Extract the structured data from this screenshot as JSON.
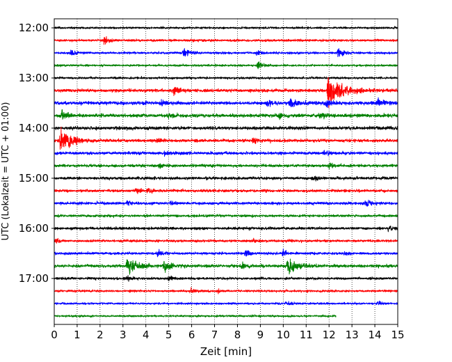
{
  "chart_data": {
    "type": "line",
    "title": "",
    "xlabel": "Zeit  [min]",
    "ylabel": "UTC (Lokalzeit = UTC + 01:00)",
    "xlim": [
      0,
      15
    ],
    "x_ticks": [
      0,
      1,
      2,
      3,
      4,
      5,
      6,
      7,
      8,
      9,
      10,
      11,
      12,
      13,
      14,
      15
    ],
    "y_ticks": [
      "12:00",
      "13:00",
      "14:00",
      "15:00",
      "16:00",
      "17:00"
    ],
    "grid": "vertical dotted at each minute",
    "trace_interval_min": 15,
    "trace_colors": [
      "#000000",
      "#ff0000",
      "#0000ff",
      "#008000"
    ],
    "traces": [
      {
        "start": "12:00",
        "color": "#000000",
        "amplitude": 0.9,
        "bursts": []
      },
      {
        "start": "12:15",
        "color": "#ff0000",
        "amplitude": 1.0,
        "bursts": [
          {
            "t": 2.15,
            "amp": 4.5
          }
        ]
      },
      {
        "start": "12:30",
        "color": "#0000ff",
        "amplitude": 1.0,
        "bursts": [
          {
            "t": 0.75,
            "amp": 2.5
          },
          {
            "t": 5.65,
            "amp": 4
          },
          {
            "t": 8.85,
            "amp": 2.5
          },
          {
            "t": 12.4,
            "amp": 4.5
          }
        ]
      },
      {
        "start": "12:45",
        "color": "#008000",
        "amplitude": 0.9,
        "bursts": [
          {
            "t": 8.9,
            "amp": 4
          }
        ]
      },
      {
        "start": "13:00",
        "color": "#000000",
        "amplitude": 1.0,
        "bursts": []
      },
      {
        "start": "13:15",
        "color": "#ff0000",
        "amplitude": 1.4,
        "bursts": [
          {
            "t": 5.25,
            "amp": 4
          },
          {
            "t": 11.95,
            "amp": 15
          }
        ]
      },
      {
        "start": "13:30",
        "color": "#0000ff",
        "amplitude": 1.5,
        "bursts": [
          {
            "t": 4.7,
            "amp": 2.5
          },
          {
            "t": 9.3,
            "amp": 3
          },
          {
            "t": 10.3,
            "amp": 5
          },
          {
            "t": 11.9,
            "amp": 3
          },
          {
            "t": 14.1,
            "amp": 4
          }
        ]
      },
      {
        "start": "13:45",
        "color": "#008000",
        "amplitude": 1.5,
        "bursts": [
          {
            "t": 0.35,
            "amp": 3
          },
          {
            "t": 5.0,
            "amp": 2.5
          },
          {
            "t": 9.8,
            "amp": 3
          },
          {
            "t": 11.6,
            "amp": 3
          }
        ]
      },
      {
        "start": "14:00",
        "color": "#000000",
        "amplitude": 1.4,
        "bursts": []
      },
      {
        "start": "14:15",
        "color": "#ff0000",
        "amplitude": 1.3,
        "bursts": [
          {
            "t": 0.28,
            "amp": 12
          },
          {
            "t": 4.5,
            "amp": 2.5
          },
          {
            "t": 8.7,
            "amp": 3
          }
        ]
      },
      {
        "start": "14:30",
        "color": "#0000ff",
        "amplitude": 1.3,
        "bursts": [
          {
            "t": 4.8,
            "amp": 2
          },
          {
            "t": 11.8,
            "amp": 2.5
          }
        ]
      },
      {
        "start": "14:45",
        "color": "#008000",
        "amplitude": 1.2,
        "bursts": [
          {
            "t": 4.6,
            "amp": 2
          },
          {
            "t": 12.0,
            "amp": 2.5
          }
        ]
      },
      {
        "start": "15:00",
        "color": "#000000",
        "amplitude": 1.2,
        "bursts": [
          {
            "t": 11.3,
            "amp": 2.5
          }
        ]
      },
      {
        "start": "15:15",
        "color": "#ff0000",
        "amplitude": 1.2,
        "bursts": [
          {
            "t": 3.6,
            "amp": 2
          },
          {
            "t": 4.1,
            "amp": 2.5
          }
        ]
      },
      {
        "start": "15:30",
        "color": "#0000ff",
        "amplitude": 1.2,
        "bursts": [
          {
            "t": 3.2,
            "amp": 2
          },
          {
            "t": 5.1,
            "amp": 2
          },
          {
            "t": 13.6,
            "amp": 3
          }
        ]
      },
      {
        "start": "15:45",
        "color": "#008000",
        "amplitude": 1.1,
        "bursts": []
      },
      {
        "start": "16:00",
        "color": "#000000",
        "amplitude": 1.2,
        "bursts": [
          {
            "t": 14.6,
            "amp": 3
          }
        ]
      },
      {
        "start": "16:15",
        "color": "#ff0000",
        "amplitude": 1.1,
        "bursts": [
          {
            "t": 0.1,
            "amp": 2.5
          },
          {
            "t": 8.7,
            "amp": 2
          }
        ]
      },
      {
        "start": "16:30",
        "color": "#0000ff",
        "amplitude": 1.1,
        "bursts": [
          {
            "t": 4.5,
            "amp": 3
          },
          {
            "t": 8.35,
            "amp": 3
          },
          {
            "t": 10.0,
            "amp": 2.5
          },
          {
            "t": 12.7,
            "amp": 2
          }
        ]
      },
      {
        "start": "16:45",
        "color": "#008000",
        "amplitude": 1.3,
        "bursts": [
          {
            "t": 3.2,
            "amp": 9
          },
          {
            "t": 4.8,
            "amp": 5
          },
          {
            "t": 8.2,
            "amp": 3.5
          },
          {
            "t": 10.2,
            "amp": 8
          }
        ]
      },
      {
        "start": "17:00",
        "color": "#000000",
        "amplitude": 1.1,
        "bursts": [
          {
            "t": 3.2,
            "amp": 2
          },
          {
            "t": 5.0,
            "amp": 1.8
          }
        ]
      },
      {
        "start": "17:15",
        "color": "#ff0000",
        "amplitude": 1.0,
        "bursts": [
          {
            "t": 5.95,
            "amp": 3
          },
          {
            "t": 7.15,
            "amp": 1.5
          }
        ]
      },
      {
        "start": "17:30",
        "color": "#0000ff",
        "amplitude": 0.9,
        "bursts": [
          {
            "t": 10.15,
            "amp": 2.5
          },
          {
            "t": 14.15,
            "amp": 2
          }
        ]
      },
      {
        "start": "17:45",
        "color": "#008000",
        "amplitude": 0.9,
        "end_min": 12.3,
        "bursts": []
      }
    ]
  }
}
